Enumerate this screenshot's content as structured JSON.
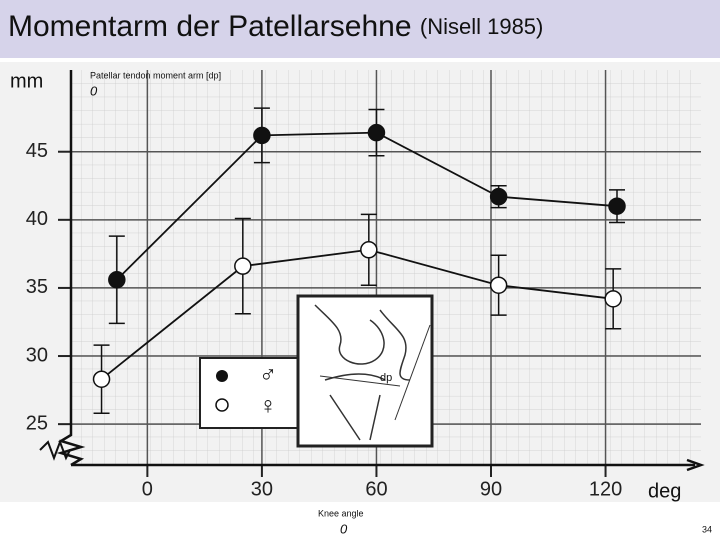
{
  "chart_data": {
    "type": "line",
    "title": "Momentarm der Patellarsehne",
    "subtitle": "(Nisell 1985)",
    "ylabel": "mm",
    "xlabel": "deg",
    "annotations": [
      "Patellar tendon moment arm [dp]",
      "0",
      "Knee angle",
      "0"
    ],
    "inset_label": "dp",
    "page_number": "34",
    "xlim": [
      -20,
      145
    ],
    "xticks": [
      0,
      30,
      60,
      90,
      120
    ],
    "ylim": [
      22,
      51
    ],
    "yticks": [
      25,
      30,
      35,
      40,
      45
    ],
    "grid": true,
    "series": [
      {
        "name": "♂",
        "color": "#111111",
        "marker": "filled",
        "x": [
          -8,
          30,
          60,
          92,
          123
        ],
        "values": [
          35.6,
          46.2,
          46.4,
          41.7,
          41.0
        ],
        "errors": [
          3.2,
          2.0,
          1.7,
          0.8,
          1.2
        ]
      },
      {
        "name": "♀",
        "color": "#111111",
        "marker": "open",
        "x": [
          -12,
          25,
          58,
          92,
          122
        ],
        "values": [
          28.3,
          36.6,
          37.8,
          35.2,
          34.2
        ],
        "errors": [
          2.5,
          3.5,
          2.6,
          2.2,
          2.2
        ]
      }
    ]
  }
}
